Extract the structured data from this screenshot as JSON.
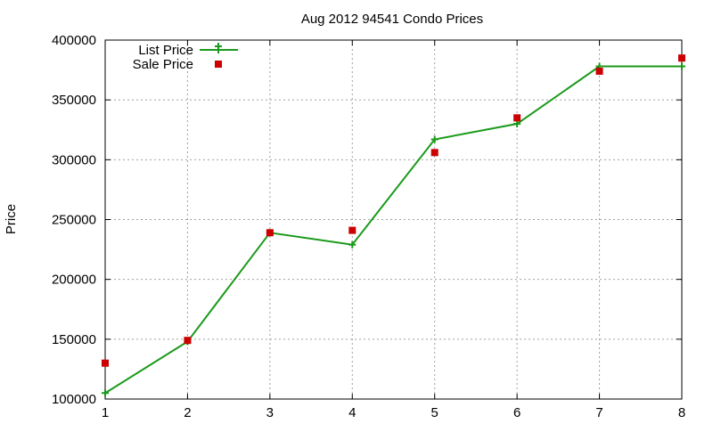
{
  "chart_data": {
    "type": "line",
    "title": "Aug 2012 94541 Condo Prices",
    "xlabel": "",
    "ylabel": "Price",
    "x": [
      1,
      2,
      3,
      4,
      5,
      6,
      7,
      8
    ],
    "xlim": [
      1,
      8
    ],
    "ylim": [
      100000,
      400000
    ],
    "xticks": [
      "1",
      "2",
      "3",
      "4",
      "5",
      "6",
      "7",
      "8"
    ],
    "yticks": [
      "100000",
      "150000",
      "200000",
      "250000",
      "300000",
      "350000",
      "400000"
    ],
    "grid": true,
    "legend_position": "top-left",
    "series": [
      {
        "name": "List Price",
        "style": "line-with-plus-markers",
        "color": "#1a9a1a",
        "values": [
          105000,
          148000,
          239000,
          229000,
          317000,
          330000,
          378000,
          378000
        ]
      },
      {
        "name": "Sale Price",
        "style": "square-markers",
        "color": "#cc0000",
        "values": [
          130000,
          149000,
          239000,
          241000,
          306000,
          335000,
          374000,
          385000
        ]
      }
    ]
  }
}
